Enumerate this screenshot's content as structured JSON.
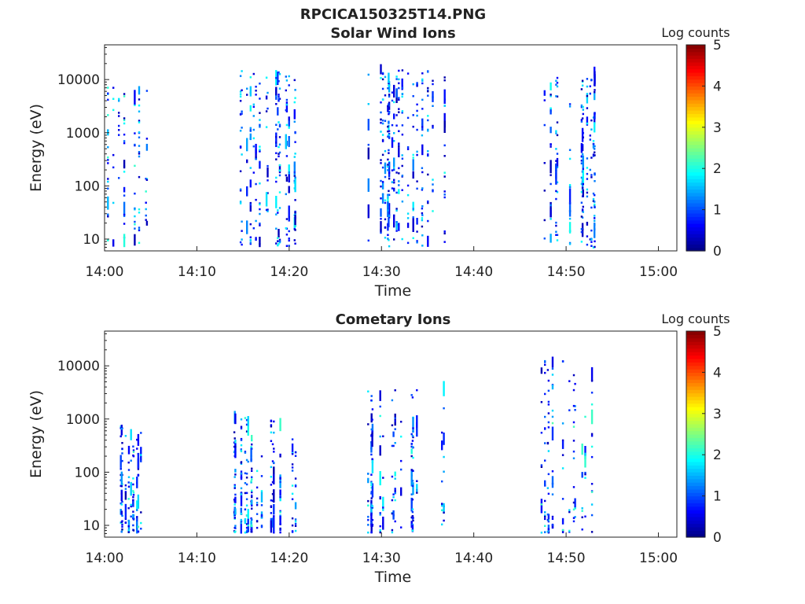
{
  "title": "RPCICA150325T14.PNG",
  "colorbar": {
    "label": "Log counts",
    "ticks": [
      "0",
      "1",
      "2",
      "3",
      "4",
      "5"
    ],
    "range": [
      0,
      5
    ],
    "colormap": "jet"
  },
  "chart_data": [
    {
      "type": "heatmap",
      "title": "Solar Wind Ions",
      "xlabel": "Time",
      "ylabel": "Energy (eV)",
      "x_ticks": [
        "14:00",
        "14:10",
        "14:20",
        "14:30",
        "14:40",
        "14:50",
        "15:00"
      ],
      "x_range_minutes": [
        0,
        62
      ],
      "y_ticks": [
        "10",
        "100",
        "1000",
        "10000"
      ],
      "y_scale": "log",
      "y_range": [
        6,
        45000
      ],
      "value_label": "Log counts",
      "value_range": [
        0,
        5
      ],
      "bursts": [
        {
          "start": "14:00",
          "end": "14:05",
          "energy_range_eV": [
            7,
            7000
          ],
          "peak_log_counts": 2.2
        },
        {
          "start": "14:13",
          "end": "14:21",
          "energy_range_eV": [
            7,
            14000
          ],
          "peak_log_counts": 2.0
        },
        {
          "start": "14:28",
          "end": "14:37",
          "energy_range_eV": [
            7,
            15000
          ],
          "peak_log_counts": 2.0
        },
        {
          "start": "14:47",
          "end": "14:53",
          "energy_range_eV": [
            6,
            12000
          ],
          "peak_log_counts": 2.0
        }
      ]
    },
    {
      "type": "heatmap",
      "title": "Cometary Ions",
      "xlabel": "Time",
      "ylabel": "Energy (eV)",
      "x_ticks": [
        "14:00",
        "14:10",
        "14:20",
        "14:30",
        "14:40",
        "14:50",
        "15:00"
      ],
      "x_range_minutes": [
        0,
        62
      ],
      "y_ticks": [
        "10",
        "100",
        "1000",
        "10000"
      ],
      "y_scale": "log",
      "y_range": [
        6,
        45000
      ],
      "value_label": "Log counts",
      "value_range": [
        0,
        5
      ],
      "bursts": [
        {
          "start": "14:00",
          "end": "14:05",
          "energy_range_eV": [
            7,
            700
          ],
          "peak_log_counts": 2.3
        },
        {
          "start": "14:12",
          "end": "14:21",
          "energy_range_eV": [
            7,
            1000
          ],
          "peak_log_counts": 2.2
        },
        {
          "start": "14:28",
          "end": "14:37",
          "energy_range_eV": [
            7,
            3800
          ],
          "peak_log_counts": 2.1
        },
        {
          "start": "14:47",
          "end": "14:53",
          "energy_range_eV": [
            7,
            12000
          ],
          "peak_log_counts": 2.3
        }
      ]
    }
  ]
}
